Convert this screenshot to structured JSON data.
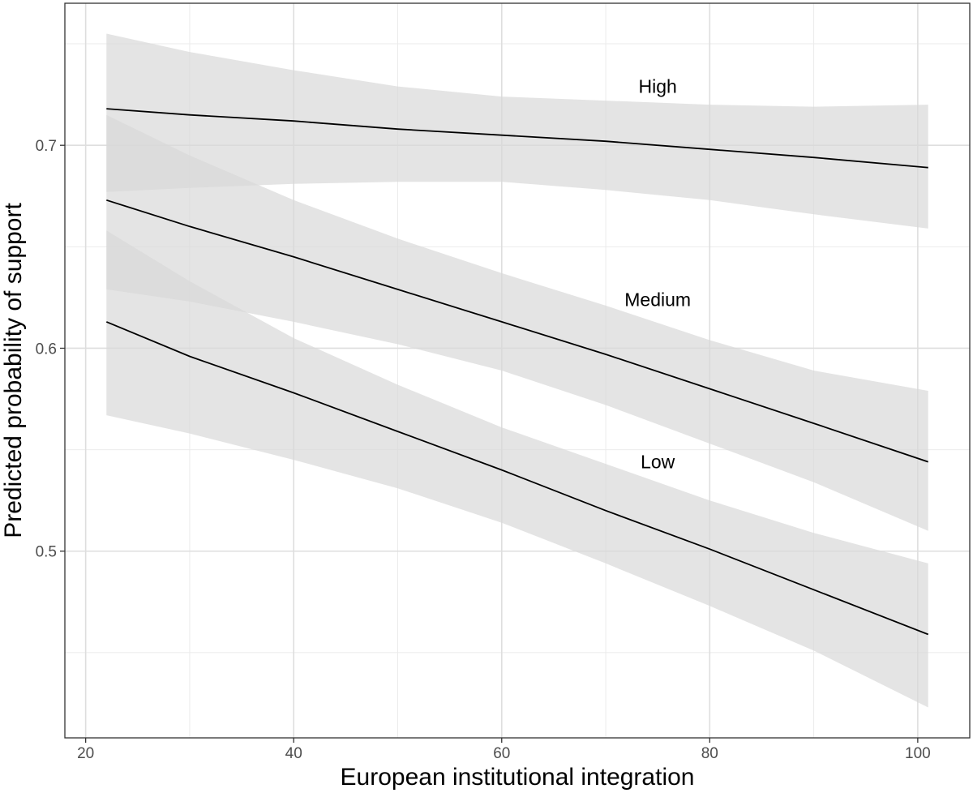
{
  "chart_data": {
    "type": "line",
    "xlabel": "European institutional integration",
    "ylabel": "Predicted probability of support",
    "xlim": [
      18,
      105
    ],
    "ylim": [
      0.408,
      0.77
    ],
    "x_ticks": [
      20,
      40,
      60,
      80,
      100
    ],
    "x_minor_ticks": [
      30,
      50,
      70,
      90
    ],
    "y_ticks": [
      0.5,
      0.6,
      0.7
    ],
    "y_minor_ticks": [
      0.45,
      0.55,
      0.65,
      0.75
    ],
    "grid": true,
    "legend": "none",
    "band_color": "#d9d9d9",
    "line_color": "#000000",
    "series": [
      {
        "name": "High",
        "label_at": [
          75,
          0.729
        ],
        "x": [
          22,
          30,
          40,
          50,
          60,
          70,
          80,
          90,
          101
        ],
        "y": [
          0.718,
          0.715,
          0.712,
          0.708,
          0.705,
          0.702,
          0.698,
          0.694,
          0.689
        ],
        "upper": [
          0.755,
          0.746,
          0.737,
          0.729,
          0.724,
          0.722,
          0.72,
          0.719,
          0.72
        ],
        "lower": [
          0.677,
          0.679,
          0.681,
          0.682,
          0.682,
          0.678,
          0.673,
          0.666,
          0.659
        ]
      },
      {
        "name": "Medium",
        "label_at": [
          75,
          0.624
        ],
        "x": [
          22,
          30,
          40,
          50,
          60,
          70,
          80,
          90,
          101
        ],
        "y": [
          0.673,
          0.66,
          0.645,
          0.629,
          0.613,
          0.597,
          0.58,
          0.563,
          0.544
        ],
        "upper": [
          0.715,
          0.695,
          0.673,
          0.654,
          0.637,
          0.621,
          0.604,
          0.589,
          0.579
        ],
        "lower": [
          0.629,
          0.623,
          0.613,
          0.602,
          0.589,
          0.572,
          0.553,
          0.534,
          0.51
        ]
      },
      {
        "name": "Low",
        "label_at": [
          75,
          0.544
        ],
        "x": [
          22,
          30,
          40,
          50,
          60,
          70,
          80,
          90,
          101
        ],
        "y": [
          0.613,
          0.596,
          0.578,
          0.559,
          0.54,
          0.52,
          0.501,
          0.481,
          0.459
        ],
        "upper": [
          0.658,
          0.633,
          0.605,
          0.582,
          0.561,
          0.543,
          0.525,
          0.509,
          0.494
        ],
        "lower": [
          0.567,
          0.558,
          0.545,
          0.531,
          0.514,
          0.494,
          0.473,
          0.451,
          0.423
        ]
      }
    ]
  }
}
